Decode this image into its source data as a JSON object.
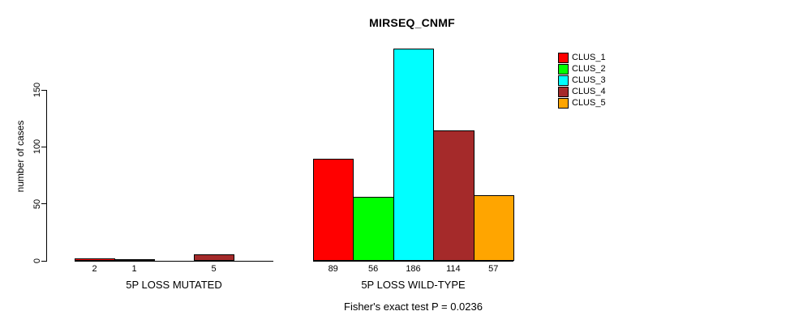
{
  "chart_data": {
    "type": "bar",
    "title": "MIRSEQ_CNMF",
    "ylabel": "number of cases",
    "xlabel": "",
    "yticks": [
      0,
      50,
      100,
      150
    ],
    "ylim": [
      0,
      150
    ],
    "grid": false,
    "legend_position": "top-right",
    "annotation": "Fisher's exact test P = 0.0236",
    "series": [
      {
        "name": "CLUS_1",
        "color": "#FF0000",
        "values": [
          2,
          89
        ]
      },
      {
        "name": "CLUS_2",
        "color": "#00FF00",
        "values": [
          1,
          56
        ]
      },
      {
        "name": "CLUS_3",
        "color": "#00FFFF",
        "values": [
          0,
          186
        ]
      },
      {
        "name": "CLUS_4",
        "color": "#A52A2A",
        "values": [
          5,
          114
        ]
      },
      {
        "name": "CLUS_5",
        "color": "#FFA500",
        "values": [
          0,
          57
        ]
      }
    ],
    "groups": [
      {
        "label": "5P LOSS MUTATED",
        "values": [
          2,
          1,
          0,
          5,
          0
        ],
        "bar_labels": [
          "2",
          "1",
          "",
          "5",
          ""
        ]
      },
      {
        "label": "5P LOSS WILD-TYPE",
        "values": [
          89,
          56,
          186,
          114,
          57
        ],
        "bar_labels": [
          "89",
          "56",
          "186",
          "114",
          "57"
        ]
      }
    ],
    "colors": {
      "bar_border": "#000000",
      "background": "#FFFFFF",
      "text": "#000000"
    }
  }
}
